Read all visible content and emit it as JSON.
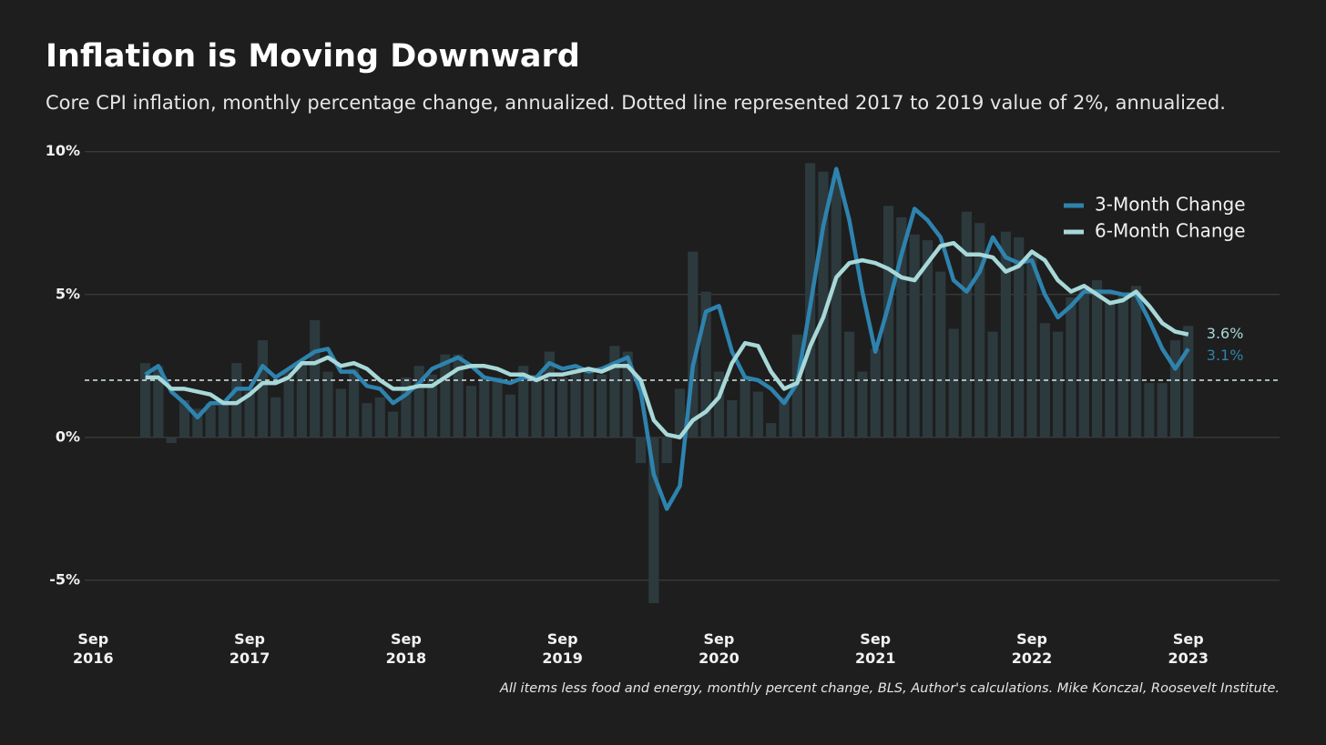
{
  "chart_data": {
    "type": "line",
    "title": "Inflation is Moving Downward",
    "subtitle": "Core CPI inflation, monthly percentage change, annualized. Dotted line represented 2017 to 2019 value of 2%, annualized.",
    "note": "All items less food and energy, monthly percent change, BLS, Author's calculations. Mike Konczal, Roosevelt Institute.",
    "x": [
      "2017-01",
      "2017-02",
      "2017-03",
      "2017-04",
      "2017-05",
      "2017-06",
      "2017-07",
      "2017-08",
      "2017-09",
      "2017-10",
      "2017-11",
      "2017-12",
      "2018-01",
      "2018-02",
      "2018-03",
      "2018-04",
      "2018-05",
      "2018-06",
      "2018-07",
      "2018-08",
      "2018-09",
      "2018-10",
      "2018-11",
      "2018-12",
      "2019-01",
      "2019-02",
      "2019-03",
      "2019-04",
      "2019-05",
      "2019-06",
      "2019-07",
      "2019-08",
      "2019-09",
      "2019-10",
      "2019-11",
      "2019-12",
      "2020-01",
      "2020-02",
      "2020-03",
      "2020-04",
      "2020-05",
      "2020-06",
      "2020-07",
      "2020-08",
      "2020-09",
      "2020-10",
      "2020-11",
      "2020-12",
      "2021-01",
      "2021-02",
      "2021-03",
      "2021-04",
      "2021-05",
      "2021-06",
      "2021-07",
      "2021-08",
      "2021-09",
      "2021-10",
      "2021-11",
      "2021-12",
      "2022-01",
      "2022-02",
      "2022-03",
      "2022-04",
      "2022-05",
      "2022-06",
      "2022-07",
      "2022-08",
      "2022-09",
      "2022-10",
      "2022-11",
      "2022-12",
      "2023-01",
      "2023-02",
      "2023-03",
      "2023-04",
      "2023-05",
      "2023-06",
      "2023-07",
      "2023-08",
      "2023-09"
    ],
    "bars": {
      "color": "#2c3a3e",
      "values": [
        2.6,
        2.5,
        -0.2,
        1.3,
        1.0,
        1.2,
        1.3,
        2.6,
        1.6,
        3.4,
        1.4,
        2.3,
        2.6,
        4.1,
        2.3,
        1.7,
        2.4,
        1.2,
        1.4,
        0.9,
        2.1,
        2.5,
        2.2,
        2.9,
        2.9,
        1.8,
        2.1,
        2.1,
        1.5,
        2.5,
        2.0,
        3.0,
        2.1,
        2.4,
        2.3,
        2.2,
        3.2,
        3.0,
        -0.9,
        -5.8,
        -0.9,
        1.7,
        6.5,
        5.1,
        2.3,
        1.3,
        2.1,
        1.6,
        0.5,
        1.4,
        3.6,
        9.6,
        9.3,
        9.1,
        3.7,
        2.3,
        3.1,
        8.1,
        7.7,
        7.1,
        6.9,
        5.8,
        3.8,
        7.9,
        7.5,
        3.7,
        7.2,
        7.0,
        6.4,
        4.0,
        3.7,
        4.9,
        5.3,
        5.5,
        4.8,
        5.0,
        5.3,
        1.9,
        1.9,
        3.4,
        3.9
      ]
    },
    "series": [
      {
        "name": "3-Month Change",
        "color": "#2e83ae",
        "end_label": "3.1%",
        "values": [
          2.2,
          2.5,
          1.6,
          1.2,
          0.7,
          1.2,
          1.2,
          1.7,
          1.7,
          2.5,
          2.1,
          2.4,
          2.7,
          3.0,
          3.1,
          2.3,
          2.3,
          1.8,
          1.7,
          1.2,
          1.5,
          1.9,
          2.4,
          2.6,
          2.8,
          2.5,
          2.1,
          2.0,
          1.9,
          2.1,
          2.1,
          2.6,
          2.4,
          2.5,
          2.3,
          2.4,
          2.6,
          2.8,
          1.6,
          -1.3,
          -2.5,
          -1.7,
          2.5,
          4.4,
          4.6,
          3.0,
          2.1,
          2.0,
          1.7,
          1.2,
          1.9,
          4.6,
          7.4,
          9.4,
          7.6,
          5.1,
          3.0,
          4.6,
          6.4,
          8.0,
          7.6,
          7.0,
          5.5,
          5.1,
          5.8,
          7.0,
          6.3,
          6.1,
          6.2,
          5.0,
          4.2,
          4.6,
          5.1,
          5.1,
          5.1,
          5.0,
          5.0,
          4.1,
          3.1,
          2.4,
          3.1
        ]
      },
      {
        "name": "6-Month Change",
        "color": "#a8d8d8",
        "end_label": "3.6%",
        "values": [
          2.1,
          2.1,
          1.7,
          1.7,
          1.6,
          1.5,
          1.2,
          1.2,
          1.5,
          1.9,
          1.9,
          2.1,
          2.6,
          2.6,
          2.8,
          2.5,
          2.6,
          2.4,
          2.0,
          1.7,
          1.7,
          1.8,
          1.8,
          2.1,
          2.4,
          2.5,
          2.5,
          2.4,
          2.2,
          2.2,
          2.0,
          2.2,
          2.2,
          2.3,
          2.4,
          2.3,
          2.5,
          2.5,
          2.0,
          0.6,
          0.1,
          0.0,
          0.6,
          0.9,
          1.4,
          2.6,
          3.3,
          3.2,
          2.3,
          1.7,
          1.9,
          3.2,
          4.2,
          5.6,
          6.1,
          6.2,
          6.1,
          5.9,
          5.6,
          5.5,
          6.1,
          6.7,
          6.8,
          6.4,
          6.4,
          6.3,
          5.8,
          6.0,
          6.5,
          6.2,
          5.5,
          5.1,
          5.3,
          5.0,
          4.7,
          4.8,
          5.1,
          4.6,
          4.0,
          3.7,
          3.6
        ]
      }
    ],
    "reference_line": {
      "value": 2,
      "color": "#d8e8e8"
    },
    "xlim": [
      "2016-08",
      "2024-04"
    ],
    "xticks": [
      {
        "value": "2016-09",
        "label": "Sep 2016"
      },
      {
        "value": "2017-09",
        "label": "Sep 2017"
      },
      {
        "value": "2018-09",
        "label": "Sep 2018"
      },
      {
        "value": "2019-09",
        "label": "Sep 2019"
      },
      {
        "value": "2020-09",
        "label": "Sep 2020"
      },
      {
        "value": "2021-09",
        "label": "Sep 2021"
      },
      {
        "value": "2022-09",
        "label": "Sep 2022"
      },
      {
        "value": "2023-09",
        "label": "Sep 2023"
      }
    ],
    "ylim": [
      -6.5,
      10.5
    ],
    "yticks": [
      {
        "value": -5,
        "label": "-5%"
      },
      {
        "value": 0,
        "label": "0%"
      },
      {
        "value": 5,
        "label": "5%"
      },
      {
        "value": 10,
        "label": "10%"
      }
    ],
    "grid": true,
    "legend": "upper right"
  }
}
